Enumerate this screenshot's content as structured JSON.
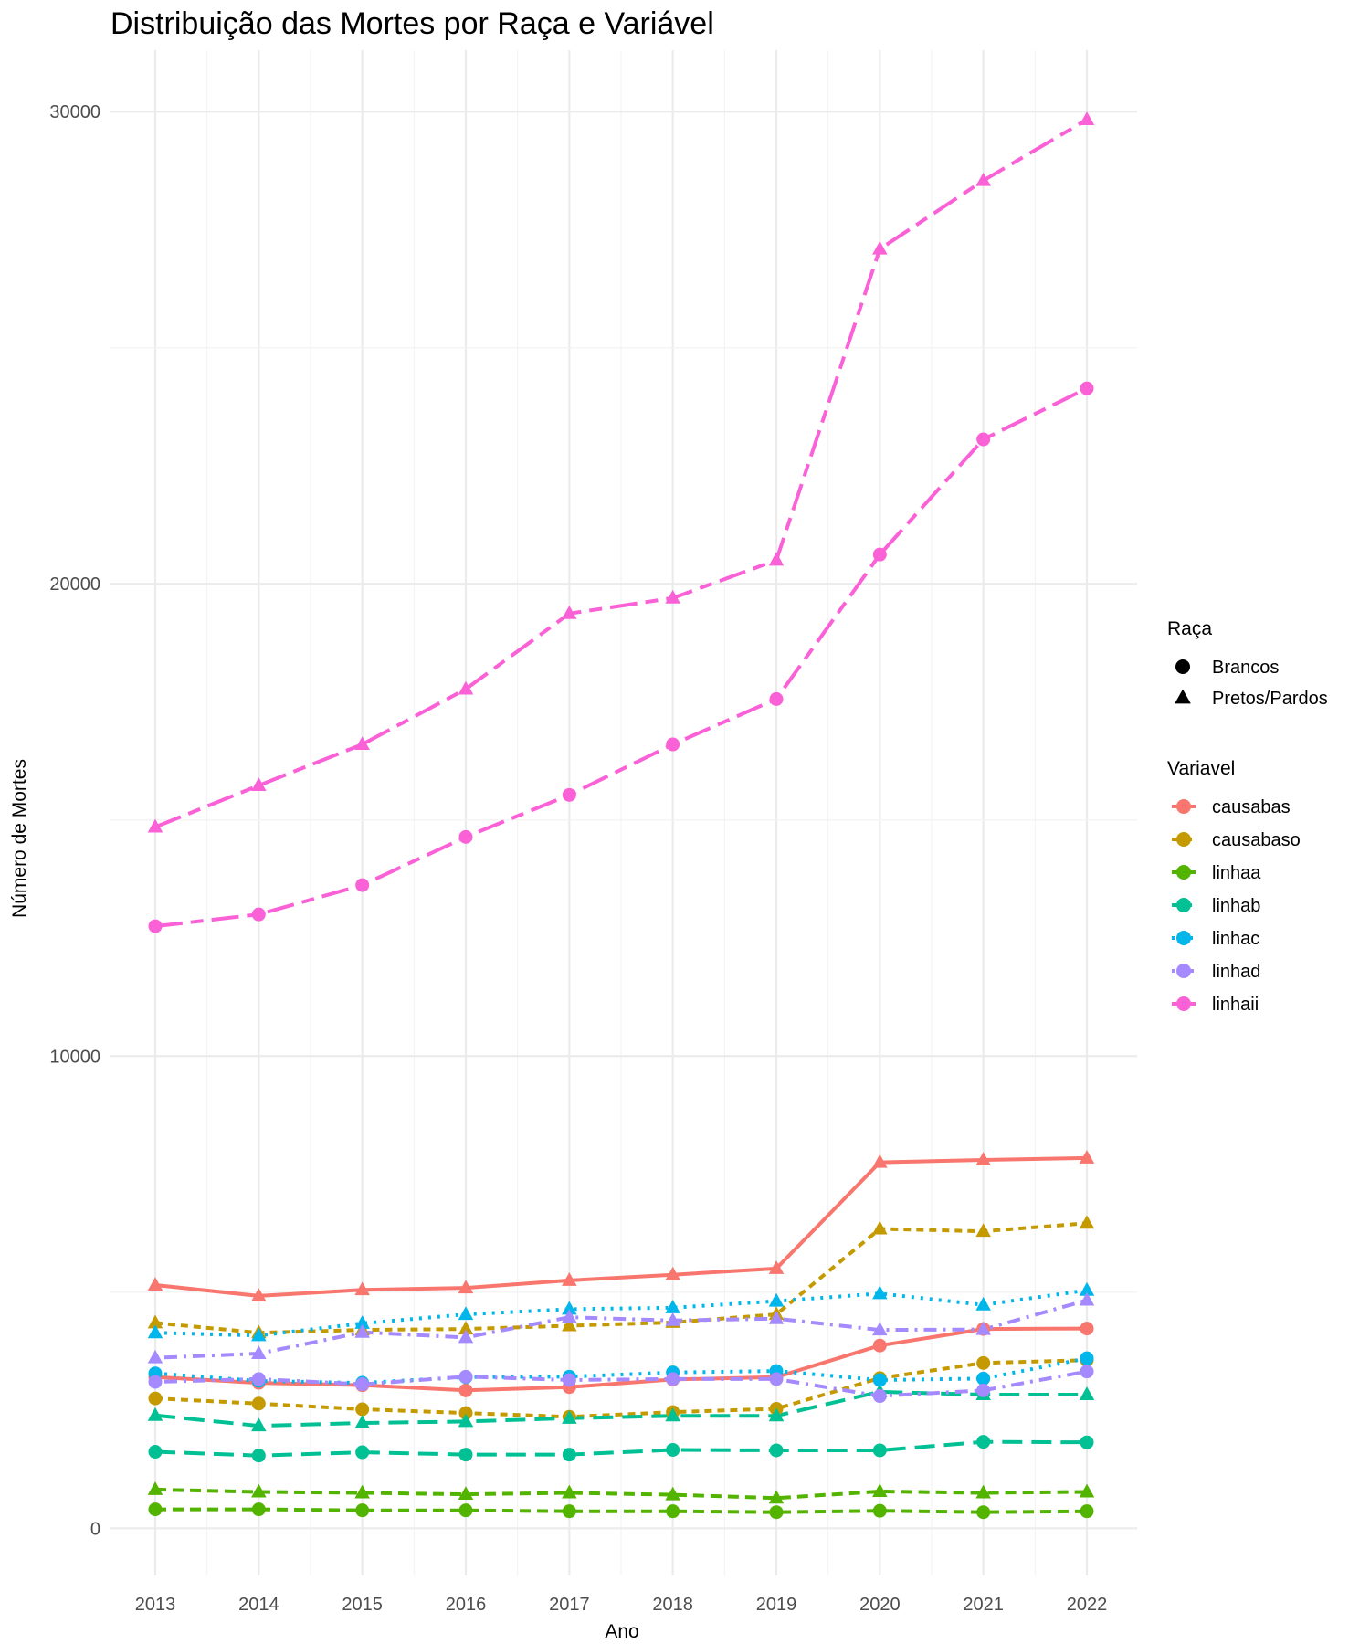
{
  "chart_data": {
    "type": "line",
    "title": "Distribuição das Mortes por Raça e Variável",
    "xlabel": "Ano",
    "ylabel": "Número de Mortes",
    "x": [
      "2013",
      "2014",
      "2015",
      "2016",
      "2017",
      "2018",
      "2019",
      "2020",
      "2021",
      "2022"
    ],
    "y_ticks": [
      "0",
      "10000",
      "20000",
      "30000"
    ],
    "ylim": [
      -1000,
      31300
    ],
    "grid": true,
    "legend_placement": "right",
    "shape_legend": {
      "title": "Raça",
      "entries": [
        {
          "label": "Brancos",
          "shape": "circle"
        },
        {
          "label": "Pretos/Pardos",
          "shape": "triangle"
        }
      ]
    },
    "color_legend": {
      "title": "Variavel",
      "entries": [
        {
          "label": "causabas",
          "color": "#F8766D",
          "dash": "solid"
        },
        {
          "label": "causabaso",
          "color": "#C49A00",
          "dash": "short-dash"
        },
        {
          "label": "linhaa",
          "color": "#53B400",
          "dash": "dash"
        },
        {
          "label": "linhab",
          "color": "#00C094",
          "dash": "long-dash"
        },
        {
          "label": "linhac",
          "color": "#00B6EB",
          "dash": "dotted"
        },
        {
          "label": "linhad",
          "color": "#A58AFF",
          "dash": "dot-dash"
        },
        {
          "label": "linhaii",
          "color": "#FB61D7",
          "dash": "two-dash"
        }
      ]
    },
    "series": [
      {
        "variable": "causabas",
        "raca": "Brancos",
        "values": [
          3200,
          3080,
          3030,
          2920,
          2990,
          3150,
          3200,
          3870,
          4220,
          4230
        ]
      },
      {
        "variable": "causabas",
        "raca": "Pretos/Pardos",
        "values": [
          5150,
          4920,
          5050,
          5090,
          5250,
          5370,
          5500,
          7750,
          7800,
          7840
        ]
      },
      {
        "variable": "causabaso",
        "raca": "Brancos",
        "values": [
          2750,
          2640,
          2520,
          2440,
          2360,
          2460,
          2530,
          3180,
          3500,
          3560
        ]
      },
      {
        "variable": "causabaso",
        "raca": "Pretos/Pardos",
        "values": [
          4350,
          4140,
          4200,
          4220,
          4290,
          4360,
          4530,
          6340,
          6290,
          6460
        ]
      },
      {
        "variable": "linhaa",
        "raca": "Brancos",
        "values": [
          400,
          400,
          380,
          380,
          360,
          360,
          340,
          370,
          340,
          360
        ]
      },
      {
        "variable": "linhaa",
        "raca": "Pretos/Pardos",
        "values": [
          820,
          770,
          750,
          720,
          750,
          710,
          640,
          780,
          750,
          770
        ]
      },
      {
        "variable": "linhab",
        "raca": "Brancos",
        "values": [
          1620,
          1540,
          1610,
          1560,
          1560,
          1660,
          1650,
          1650,
          1830,
          1820
        ]
      },
      {
        "variable": "linhab",
        "raca": "Pretos/Pardos",
        "values": [
          2390,
          2170,
          2230,
          2260,
          2330,
          2380,
          2380,
          2890,
          2830,
          2830
        ]
      },
      {
        "variable": "linhac",
        "raca": "Brancos",
        "values": [
          3280,
          3120,
          3080,
          3200,
          3210,
          3300,
          3330,
          3140,
          3170,
          3600
        ]
      },
      {
        "variable": "linhac",
        "raca": "Pretos/Pardos",
        "values": [
          4140,
          4080,
          4340,
          4530,
          4640,
          4670,
          4810,
          4970,
          4730,
          5040
        ]
      },
      {
        "variable": "linhad",
        "raca": "Brancos",
        "values": [
          3100,
          3160,
          3050,
          3210,
          3140,
          3160,
          3160,
          2800,
          2920,
          3320
        ]
      },
      {
        "variable": "linhad",
        "raca": "Pretos/Pardos",
        "values": [
          3610,
          3700,
          4150,
          4040,
          4470,
          4400,
          4440,
          4200,
          4210,
          4830
        ]
      },
      {
        "variable": "linhaii",
        "raca": "Brancos",
        "values": [
          12750,
          13000,
          13620,
          14640,
          15530,
          16600,
          17560,
          20620,
          23060,
          24140
        ]
      },
      {
        "variable": "linhaii",
        "raca": "Pretos/Pardos",
        "values": [
          14850,
          15730,
          16600,
          17770,
          19370,
          19700,
          20500,
          27090,
          28540,
          29830
        ]
      }
    ]
  }
}
